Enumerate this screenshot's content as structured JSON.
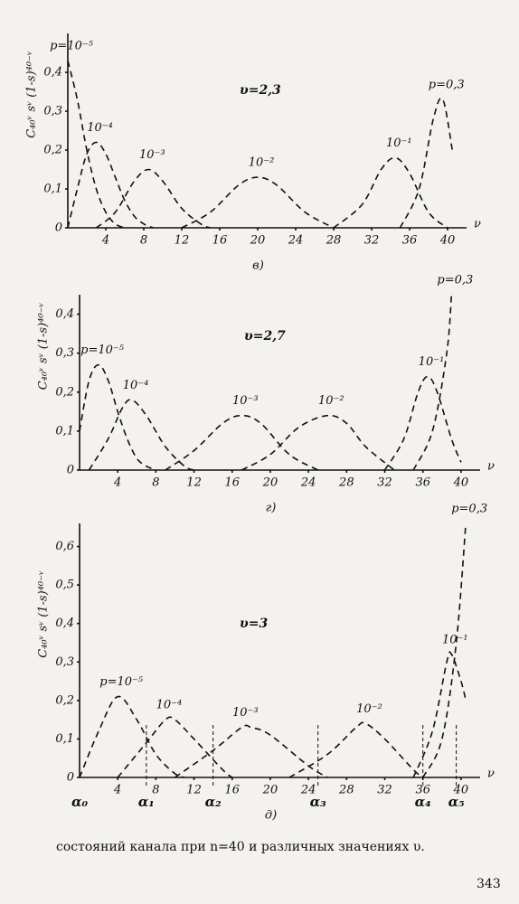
{
  "chart_data": [
    {
      "type": "line",
      "annotation": "υ=2,3",
      "caption": "в)",
      "ylabel": "C₄₀ᵛ sᵛ (1-s)⁴⁰⁻ᵛ",
      "xlabel": "ν",
      "xlim": [
        0,
        42
      ],
      "ylim": [
        0,
        0.5
      ],
      "dashed": true,
      "xticks": [
        4,
        8,
        12,
        16,
        20,
        24,
        28,
        32,
        36,
        40
      ],
      "yticks": [
        0,
        {
          "value": 0.1,
          "label": "0,1"
        },
        {
          "value": 0.2,
          "label": "0,2"
        },
        {
          "value": 0.3,
          "label": "0,3"
        },
        {
          "value": 0.4,
          "label": "0,4"
        }
      ],
      "series": [
        {
          "name": "p=10⁻⁵",
          "color": "#111",
          "x": [
            0,
            1,
            2,
            3,
            4,
            5,
            6
          ],
          "values": [
            0.43,
            0.33,
            0.2,
            0.1,
            0.04,
            0.01,
            0
          ]
        },
        {
          "name": "10⁻⁴",
          "color": "#111",
          "x": [
            0,
            1,
            2,
            3,
            4,
            5,
            6,
            7,
            8,
            9
          ],
          "values": [
            0,
            0.1,
            0.19,
            0.22,
            0.19,
            0.13,
            0.07,
            0.03,
            0.01,
            0
          ]
        },
        {
          "name": "10⁻³",
          "color": "#111",
          "x": [
            3,
            5,
            7,
            8.5,
            10,
            12,
            14,
            15
          ],
          "values": [
            0,
            0.04,
            0.12,
            0.15,
            0.12,
            0.05,
            0.01,
            0
          ]
        },
        {
          "name": "10⁻²",
          "color": "#111",
          "x": [
            12,
            15,
            18,
            20,
            22,
            25,
            28
          ],
          "values": [
            0,
            0.04,
            0.11,
            0.13,
            0.11,
            0.04,
            0
          ]
        },
        {
          "name": "10⁻¹",
          "color": "#111",
          "x": [
            28,
            31,
            33,
            34.5,
            36,
            38,
            40
          ],
          "values": [
            0,
            0.06,
            0.15,
            0.18,
            0.14,
            0.04,
            0
          ]
        },
        {
          "name": "p=0,3",
          "color": "#111",
          "x": [
            35,
            37,
            38.5,
            39.5,
            40.5
          ],
          "values": [
            0,
            0.1,
            0.28,
            0.33,
            0.2
          ]
        }
      ]
    },
    {
      "type": "line",
      "annotation": "υ=2,7",
      "caption": "г)",
      "ylabel": "C₄₀ᵛ sᵛ (1-s)⁴⁰⁻ᵛ",
      "xlabel": "ν",
      "xlim": [
        0,
        42
      ],
      "ylim": [
        0,
        0.45
      ],
      "dashed": true,
      "xticks": [
        4,
        8,
        12,
        16,
        20,
        24,
        28,
        32,
        36,
        40
      ],
      "yticks": [
        0,
        {
          "value": 0.1,
          "label": "0,1"
        },
        {
          "value": 0.2,
          "label": "0,2"
        },
        {
          "value": 0.3,
          "label": "0,3"
        },
        {
          "value": 0.4,
          "label": "0,4"
        }
      ],
      "series": [
        {
          "name": "p=10⁻⁵",
          "color": "#111",
          "x": [
            0,
            1,
            2,
            3,
            4,
            5,
            6,
            7,
            8
          ],
          "values": [
            0.1,
            0.23,
            0.27,
            0.23,
            0.15,
            0.08,
            0.03,
            0.01,
            0
          ]
        },
        {
          "name": "10⁻⁴",
          "color": "#111",
          "x": [
            1,
            3,
            4.5,
            5.5,
            7,
            9,
            11,
            12
          ],
          "values": [
            0,
            0.08,
            0.16,
            0.18,
            0.14,
            0.06,
            0.01,
            0
          ]
        },
        {
          "name": "10⁻³",
          "color": "#111",
          "x": [
            9,
            12,
            15,
            17,
            19,
            22,
            25
          ],
          "values": [
            0,
            0.05,
            0.12,
            0.14,
            0.12,
            0.04,
            0
          ]
        },
        {
          "name": "10⁻²",
          "color": "#111",
          "x": [
            17,
            20,
            23,
            26,
            28,
            30,
            33
          ],
          "values": [
            0,
            0.04,
            0.11,
            0.14,
            0.12,
            0.06,
            0
          ]
        },
        {
          "name": "10⁻¹",
          "color": "#111",
          "x": [
            32,
            34,
            35.5,
            36.5,
            37.5,
            39,
            40
          ],
          "values": [
            0,
            0.08,
            0.2,
            0.24,
            0.2,
            0.08,
            0.02
          ]
        },
        {
          "name": "p=0,3",
          "color": "#111",
          "x": [
            35,
            37,
            38.5,
            39
          ],
          "values": [
            0,
            0.1,
            0.3,
            0.45
          ]
        }
      ]
    },
    {
      "type": "line",
      "annotation": "υ=3",
      "caption": "д)",
      "ylabel": "C₄₀ᵛ sᵛ (1-s)⁴⁰⁻ᵛ",
      "xlabel": "ν",
      "xlim": [
        0,
        42
      ],
      "ylim": [
        0,
        0.66
      ],
      "dashed": true,
      "xticks": [
        4,
        8,
        12,
        16,
        20,
        24,
        28,
        32,
        36,
        40
      ],
      "yticks": [
        0,
        {
          "value": 0.1,
          "label": "0,1"
        },
        {
          "value": 0.2,
          "label": "0,2"
        },
        {
          "value": 0.3,
          "label": "0,3"
        },
        {
          "value": 0.4,
          "label": "0,4"
        },
        {
          "value": 0.5,
          "label": "0,5"
        },
        {
          "value": 0.6,
          "label": "0,6"
        }
      ],
      "series": [
        {
          "name": "p=10⁻⁵",
          "color": "#111",
          "x": [
            0,
            2,
            4,
            6,
            8,
            10,
            11
          ],
          "values": [
            0,
            0.12,
            0.21,
            0.15,
            0.06,
            0.01,
            0
          ]
        },
        {
          "name": "10⁻⁴",
          "color": "#111",
          "x": [
            4,
            7,
            9,
            10,
            12,
            15,
            16
          ],
          "values": [
            0,
            0.09,
            0.15,
            0.15,
            0.1,
            0.02,
            0
          ]
        },
        {
          "name": "10⁻³",
          "color": "#111",
          "x": [
            10,
            14,
            17,
            18,
            20,
            24,
            26
          ],
          "values": [
            0,
            0.07,
            0.13,
            0.13,
            0.11,
            0.03,
            0
          ]
        },
        {
          "name": "10⁻²",
          "color": "#111",
          "x": [
            22,
            26,
            29,
            30,
            32,
            35,
            36
          ],
          "values": [
            0,
            0.06,
            0.13,
            0.14,
            0.1,
            0.02,
            0
          ]
        },
        {
          "name": "10⁻¹",
          "color": "#111",
          "x": [
            35,
            37,
            38.5,
            39,
            40,
            40.5
          ],
          "values": [
            0,
            0.12,
            0.3,
            0.32,
            0.25,
            0.2
          ]
        },
        {
          "name": "p=0,3",
          "color": "#111",
          "x": [
            36,
            38,
            39.5,
            40.5
          ],
          "values": [
            0,
            0.1,
            0.35,
            0.66
          ]
        }
      ],
      "markers": {
        "labels": [
          "α₀",
          "α₁",
          "α₂",
          "α₃",
          "α₄",
          "α₅"
        ],
        "x": [
          0,
          7,
          14,
          25,
          36,
          39.5
        ]
      }
    }
  ],
  "text": "состояний канала при n=40 и различных значениях υ.",
  "page_number": "343"
}
